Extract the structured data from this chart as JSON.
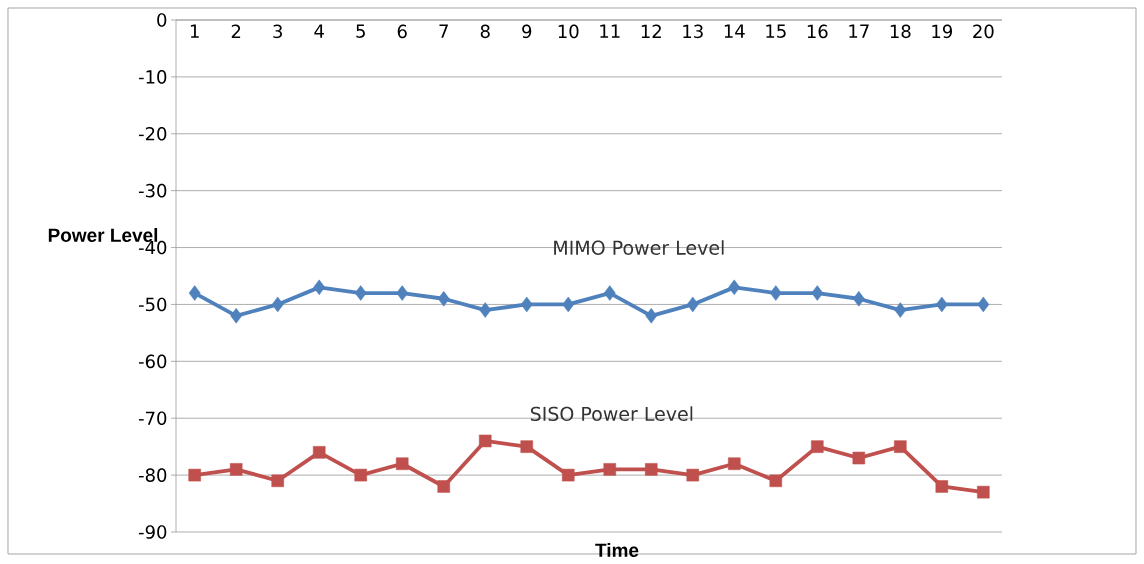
{
  "chart_data": {
    "type": "line",
    "xlabel": "Time",
    "ylabel": "Power Level",
    "categories": [
      "1",
      "2",
      "3",
      "4",
      "5",
      "6",
      "7",
      "8",
      "9",
      "10",
      "11",
      "12",
      "13",
      "14",
      "15",
      "16",
      "17",
      "18",
      "19",
      "20"
    ],
    "series": [
      {
        "name": "MIMO Power Level",
        "color": "#4f81bd",
        "marker": "diamond",
        "values": [
          -48,
          -52,
          -50,
          -47,
          -48,
          -48,
          -49,
          -51,
          -50,
          -50,
          -48,
          -52,
          -50,
          -47,
          -48,
          -48,
          -49,
          -51,
          -50,
          -50
        ]
      },
      {
        "name": "SISO Power Level",
        "color": "#c0504d",
        "marker": "square",
        "values": [
          -80,
          -79,
          -81,
          -76,
          -80,
          -78,
          -82,
          -74,
          -75,
          -80,
          -79,
          -79,
          -80,
          -78,
          -81,
          -75,
          -77,
          -75,
          -82,
          -83
        ]
      }
    ],
    "ylim": [
      -90,
      0
    ],
    "yticks": [
      -90,
      -80,
      -70,
      -60,
      -50,
      -40,
      -30,
      -20,
      -10,
      0
    ],
    "grid": "y"
  }
}
